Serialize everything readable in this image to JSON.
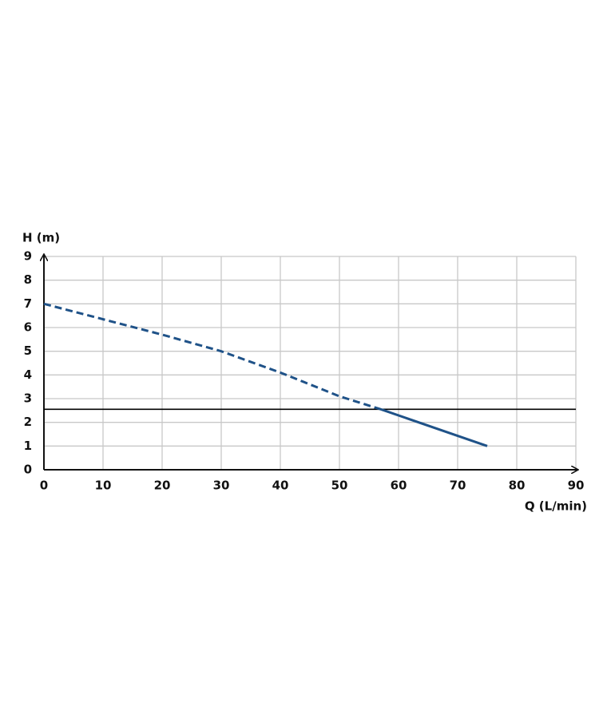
{
  "chart_data": {
    "type": "line",
    "x_label": "Q (L/min)",
    "y_label": "H (m)",
    "series": [
      {
        "color": "#1f5288",
        "dashed": true,
        "x": [
          0,
          10,
          20,
          30,
          40,
          50,
          57
        ],
        "values": [
          7,
          6.35,
          5.7,
          5.0,
          4.1,
          3.1,
          2.55
        ]
      },
      {
        "color": "#1f5288",
        "dashed": false,
        "x": [
          57,
          75
        ],
        "values": [
          2.55,
          1
        ]
      }
    ],
    "reference_line": {
      "value": 2.55,
      "color": "#000000"
    },
    "xlim": [
      0,
      90
    ],
    "xticks": [
      0,
      10,
      20,
      30,
      40,
      50,
      60,
      70,
      80,
      90
    ],
    "ylim": [
      0,
      9
    ],
    "yticks": [
      0,
      1,
      2,
      3,
      4,
      5,
      6,
      7,
      8,
      9
    ],
    "grid": true
  }
}
